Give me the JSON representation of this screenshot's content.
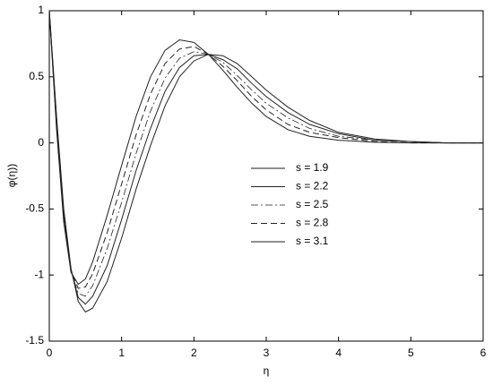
{
  "chart_data": {
    "type": "line",
    "xlabel": "η",
    "ylabel": "φ(η))",
    "x": [
      0,
      0.1,
      0.2,
      0.3,
      0.4,
      0.5,
      0.6,
      0.8,
      1,
      1.2,
      1.4,
      1.6,
      1.8,
      2,
      2.2,
      2.4,
      2.6,
      2.8,
      3,
      3.3,
      3.6,
      4,
      4.5,
      5,
      5.5,
      6
    ],
    "series": [
      {
        "name": "s = 1.9",
        "color": "#222222",
        "dash": "solid",
        "values": [
          1,
          0.2,
          -0.5,
          -0.95,
          -1.2,
          -1.28,
          -1.25,
          -1.05,
          -0.72,
          -0.35,
          -0.02,
          0.28,
          0.5,
          0.62,
          0.67,
          0.66,
          0.6,
          0.5,
          0.4,
          0.27,
          0.17,
          0.08,
          0.03,
          0.01,
          0,
          0
        ]
      },
      {
        "name": "s = 2.2",
        "color": "#222222",
        "dash": "solid",
        "values": [
          1,
          0.18,
          -0.53,
          -0.96,
          -1.17,
          -1.22,
          -1.16,
          -0.93,
          -0.58,
          -0.21,
          0.11,
          0.39,
          0.57,
          0.66,
          0.67,
          0.63,
          0.56,
          0.45,
          0.35,
          0.23,
          0.14,
          0.07,
          0.02,
          0.01,
          0,
          0
        ]
      },
      {
        "name": "s = 2.5",
        "color": "#222222",
        "dash": "dashdot",
        "values": [
          1,
          0.15,
          -0.55,
          -0.97,
          -1.14,
          -1.16,
          -1.08,
          -0.8,
          -0.45,
          -0.08,
          0.24,
          0.49,
          0.64,
          0.69,
          0.67,
          0.61,
          0.51,
          0.4,
          0.3,
          0.19,
          0.11,
          0.05,
          0.02,
          0.01,
          0,
          0
        ]
      },
      {
        "name": "s = 2.8",
        "color": "#222222",
        "dash": "dashed",
        "values": [
          1,
          0.13,
          -0.58,
          -0.97,
          -1.1,
          -1.09,
          -0.99,
          -0.68,
          -0.31,
          0.06,
          0.37,
          0.6,
          0.71,
          0.73,
          0.67,
          0.58,
          0.47,
          0.35,
          0.25,
          0.14,
          0.08,
          0.04,
          0.01,
          0,
          0,
          0
        ]
      },
      {
        "name": "s = 3.1",
        "color": "#222222",
        "dash": "solid",
        "values": [
          1,
          0.1,
          -0.6,
          -0.98,
          -1.07,
          -1.03,
          -0.9,
          -0.55,
          -0.17,
          0.2,
          0.5,
          0.7,
          0.78,
          0.76,
          0.67,
          0.55,
          0.42,
          0.3,
          0.2,
          0.1,
          0.05,
          0.02,
          0.005,
          0,
          0,
          0
        ]
      }
    ],
    "xlim": [
      0,
      6
    ],
    "xticks": [
      0,
      1,
      2,
      3,
      4,
      5,
      6
    ],
    "ylim": [
      -1.5,
      1
    ],
    "yticks": [
      -1.5,
      -1,
      -0.5,
      0,
      0.5,
      1
    ],
    "grid": false
  }
}
